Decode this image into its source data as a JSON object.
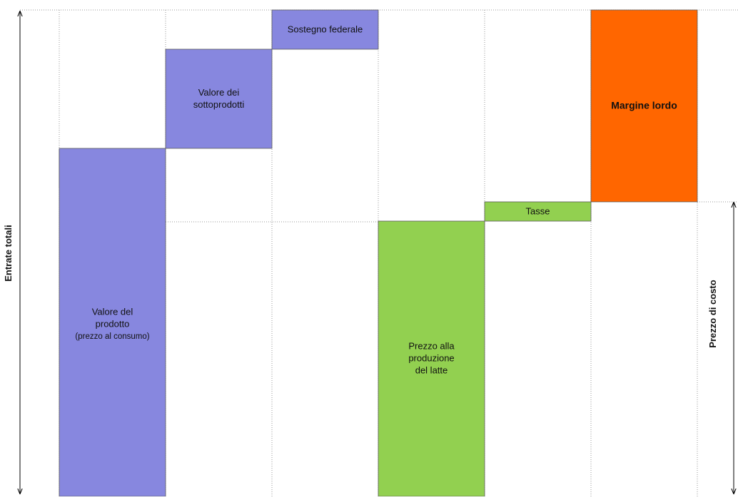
{
  "colors": {
    "product_segments": "#8787df",
    "cost_segments": "#92d050",
    "margin_segment": "#ff6600",
    "outline": "#5a5a5a",
    "guide_lines": "#9a9a9a",
    "arrow": "#000000"
  },
  "axes": {
    "total_revenue": "Entrate totali",
    "cost_price": "Prezzo di costo"
  },
  "segments": [
    {
      "id": "product-value",
      "color_key": "product_segments",
      "lines": [
        "Valore del",
        "prodotto",
        "(prezzo al consumo)"
      ]
    },
    {
      "id": "byproducts-value",
      "color_key": "product_segments",
      "lines": [
        "Valore dei",
        "sottoprodotti"
      ]
    },
    {
      "id": "federal-support",
      "color_key": "product_segments",
      "lines": [
        "Sostegno federale"
      ]
    },
    {
      "id": "milk-production-price",
      "color_key": "cost_segments",
      "lines": [
        "Prezzo alla",
        "produzione",
        "del latte"
      ]
    },
    {
      "id": "taxes",
      "color_key": "cost_segments",
      "lines": [
        "Tasse"
      ]
    },
    {
      "id": "gross-margin",
      "color_key": "margin_segment",
      "lines": [
        "Margine lordo"
      ]
    }
  ]
}
